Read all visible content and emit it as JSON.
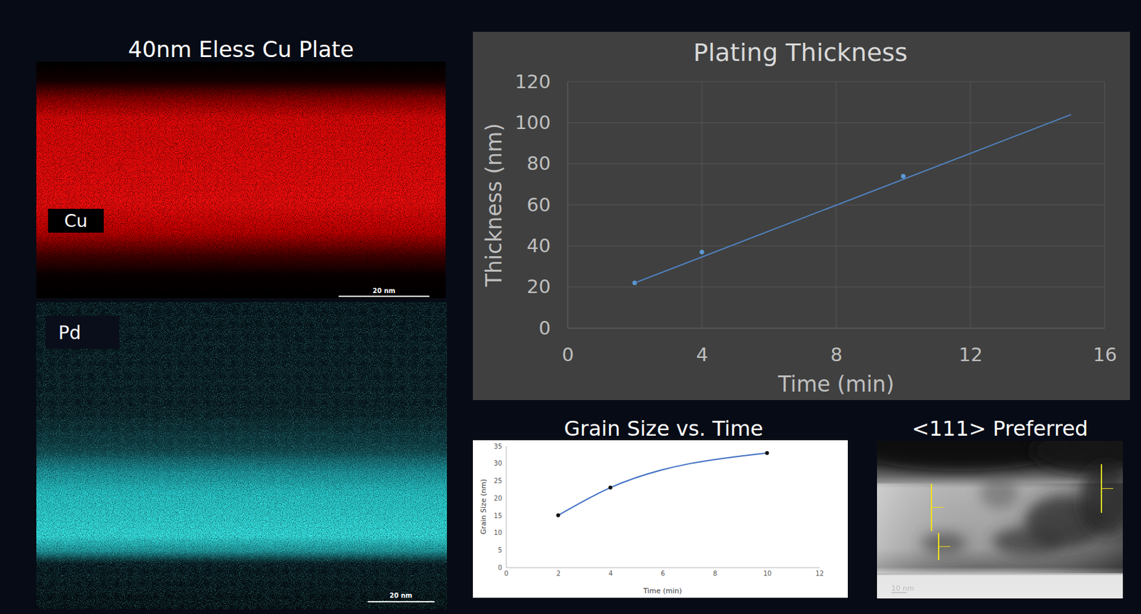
{
  "chart_data": [
    {
      "type": "scatter",
      "title": "Plating Thickness",
      "x_label": "Time (min)",
      "y_label": "Thickness (nm)",
      "xlim": [
        0,
        16
      ],
      "ylim": [
        0,
        120
      ],
      "xticks": [
        0,
        4,
        8,
        12,
        16
      ],
      "yticks": [
        0,
        20,
        40,
        60,
        80,
        100,
        120
      ],
      "grid": true,
      "series": [
        {
          "type": "scatter",
          "color": "#5b9bd5",
          "marker": "circle",
          "x": [
            2,
            4,
            10
          ],
          "values": [
            22,
            37,
            74
          ]
        },
        {
          "type": "line",
          "color": "#4f81bd",
          "line_style": "solid",
          "x": [
            2,
            15
          ],
          "values": [
            22,
            104
          ]
        }
      ]
    },
    {
      "type": "line",
      "title": "Grain Size vs. Time",
      "x_label": "Time (min)",
      "y_label": "Grain Size (nm)",
      "xlim": [
        0,
        12
      ],
      "ylim": [
        0,
        35
      ],
      "xticks": [
        0,
        2,
        4,
        6,
        8,
        10,
        12
      ],
      "yticks": [
        0,
        5,
        10,
        15,
        20,
        25,
        30,
        35
      ],
      "grid": false,
      "series": [
        {
          "type": "line",
          "color": "#4472c4",
          "marker": "circle",
          "line_style": "solid",
          "x": [
            2,
            4,
            10
          ],
          "values": [
            15,
            23,
            33
          ]
        }
      ]
    }
  ],
  "images": [
    {
      "title": "40nm Eless Cu Plate",
      "label": "Cu",
      "scale_bar": "20 nm"
    },
    {
      "label": "Pd",
      "scale_bar": "20 nm"
    },
    {
      "title": "<111> Preferred",
      "scale_bar": "10 nm"
    }
  ]
}
